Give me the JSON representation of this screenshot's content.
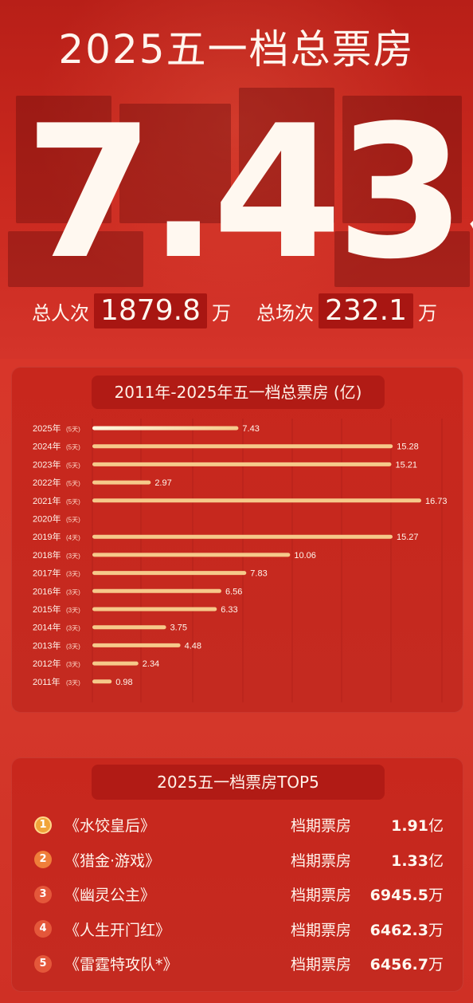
{
  "header": {
    "title": "2025五一档总票房",
    "total_number": "7.43",
    "total_unit": "亿"
  },
  "stats": {
    "viewers_label": "总人次",
    "viewers_value": "1879.8",
    "viewers_unit": "万",
    "screenings_label": "总场次",
    "screenings_value": "232.1",
    "screenings_unit": "万"
  },
  "chart_panel": {
    "title": "2011年-2025年五一档总票房 (亿)"
  },
  "chart_data": {
    "type": "bar",
    "orientation": "horizontal",
    "title": "2011年-2025年五一档总票房 (亿)",
    "categories": [
      {
        "year": "2025年",
        "days": "(5天)"
      },
      {
        "year": "2024年",
        "days": "(5天)"
      },
      {
        "year": "2023年",
        "days": "(5天)"
      },
      {
        "year": "2022年",
        "days": "(5天)"
      },
      {
        "year": "2021年",
        "days": "(5天)"
      },
      {
        "year": "2020年",
        "days": "(5天)"
      },
      {
        "year": "2019年",
        "days": "(4天)"
      },
      {
        "year": "2018年",
        "days": "(3天)"
      },
      {
        "year": "2017年",
        "days": "(3天)"
      },
      {
        "year": "2016年",
        "days": "(3天)"
      },
      {
        "year": "2015年",
        "days": "(3天)"
      },
      {
        "year": "2014年",
        "days": "(3天)"
      },
      {
        "year": "2013年",
        "days": "(3天)"
      },
      {
        "year": "2012年",
        "days": "(3天)"
      },
      {
        "year": "2011年",
        "days": "(3天)"
      }
    ],
    "values": [
      7.43,
      15.28,
      15.21,
      2.97,
      16.73,
      null,
      15.27,
      10.06,
      7.83,
      6.56,
      6.33,
      3.75,
      4.48,
      2.34,
      0.98
    ],
    "labels": [
      "7.43",
      "15.28",
      "15.21",
      "2.97",
      "16.73",
      "",
      "15.27",
      "10.06",
      "7.83",
      "6.56",
      "6.33",
      "3.75",
      "4.48",
      "2.34",
      "0.98"
    ],
    "xlim": [
      0,
      16.73
    ],
    "highlight_index": 0,
    "colors": {
      "bar": "#f6c98a",
      "highlight": "#fff6de",
      "grid": "#b3211a"
    },
    "grid": true
  },
  "top5": {
    "title": "2025五一档票房TOP5",
    "column_label": "档期票房",
    "items": [
      {
        "rank": "1",
        "film": "《水饺皇后》",
        "gross": "1.91",
        "unit": "亿"
      },
      {
        "rank": "2",
        "film": "《猎金·游戏》",
        "gross": "1.33",
        "unit": "亿"
      },
      {
        "rank": "3",
        "film": "《幽灵公主》",
        "gross": "6945.5",
        "unit": "万"
      },
      {
        "rank": "4",
        "film": "《人生开门红》",
        "gross": "6462.3",
        "unit": "万"
      },
      {
        "rank": "5",
        "film": "《雷霆特攻队*》",
        "gross": "6456.7",
        "unit": "万"
      }
    ]
  }
}
